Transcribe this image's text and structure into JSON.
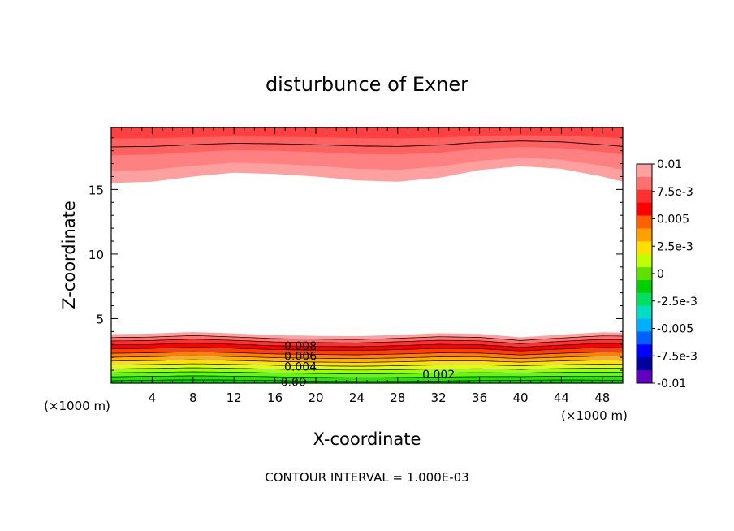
{
  "chart_data": {
    "type": "heatmap",
    "title": "disturbunce of Exner",
    "xlabel": "X-coordinate",
    "ylabel": "Z-coordinate",
    "x_unit_left": "(×1000 m)",
    "x_unit_right": "(×1000 m)",
    "footer": "CONTOUR INTERVAL = 1.000E-03",
    "xlim": [
      0,
      50
    ],
    "ylim": [
      0,
      19.8
    ],
    "x_ticks": [
      4,
      8,
      12,
      16,
      20,
      24,
      28,
      32,
      36,
      40,
      44,
      48
    ],
    "x_tick_labels": [
      "4",
      "8",
      "12",
      "16",
      "20",
      "24",
      "28",
      "32",
      "36",
      "40",
      "44",
      "48"
    ],
    "y_ticks": [
      5,
      10,
      15
    ],
    "y_tick_labels": [
      "5",
      "10",
      "15"
    ],
    "colorbar": {
      "min": -0.01,
      "max": 0.01,
      "labels": [
        "0.01",
        "7.5e-3",
        "0.005",
        "2.5e-3",
        "0",
        "-2.5e-3",
        "-0.005",
        "-7.5e-3",
        "-0.01"
      ],
      "label_values": [
        0.01,
        0.0075,
        0.005,
        0.0025,
        0,
        -0.0025,
        -0.005,
        -0.0075,
        -0.01
      ],
      "colors_top_to_bottom": [
        "#ffa0a0",
        "#ff7070",
        "#ff3030",
        "#ff0000",
        "#ff6000",
        "#ffa000",
        "#ffe000",
        "#c0ff00",
        "#60e000",
        "#00d000",
        "#00e060",
        "#00e0c0",
        "#00b0ff",
        "#0060ff",
        "#0000ff",
        "#0000a0",
        "#6000c0"
      ]
    },
    "contour_labels": [
      {
        "text": "0.008",
        "x": 18.5,
        "z": 2.9
      },
      {
        "text": "0.006",
        "x": 18.5,
        "z": 2.1
      },
      {
        "text": "0.004",
        "x": 18.5,
        "z": 1.3
      },
      {
        "text": "0.002",
        "x": 32,
        "z": 0.7
      },
      {
        "text": "0.00",
        "x": 17.8,
        "z": 0.1
      }
    ],
    "upper_boundary_z": [
      [
        0,
        15.5
      ],
      [
        4,
        15.6
      ],
      [
        8,
        16.0
      ],
      [
        12,
        16.3
      ],
      [
        16,
        16.2
      ],
      [
        20,
        16.0
      ],
      [
        24,
        15.7
      ],
      [
        28,
        15.6
      ],
      [
        32,
        15.9
      ],
      [
        36,
        16.5
      ],
      [
        40,
        16.8
      ],
      [
        44,
        16.6
      ],
      [
        48,
        16.0
      ],
      [
        50,
        15.6
      ]
    ],
    "lower_boundary_z": [
      [
        0,
        3.8
      ],
      [
        4,
        3.8
      ],
      [
        8,
        3.9
      ],
      [
        12,
        3.8
      ],
      [
        16,
        3.7
      ],
      [
        20,
        3.7
      ],
      [
        24,
        3.7
      ],
      [
        28,
        3.8
      ],
      [
        32,
        3.9
      ],
      [
        36,
        3.8
      ],
      [
        40,
        3.5
      ],
      [
        44,
        3.7
      ],
      [
        48,
        3.9
      ],
      [
        50,
        3.9
      ]
    ]
  }
}
